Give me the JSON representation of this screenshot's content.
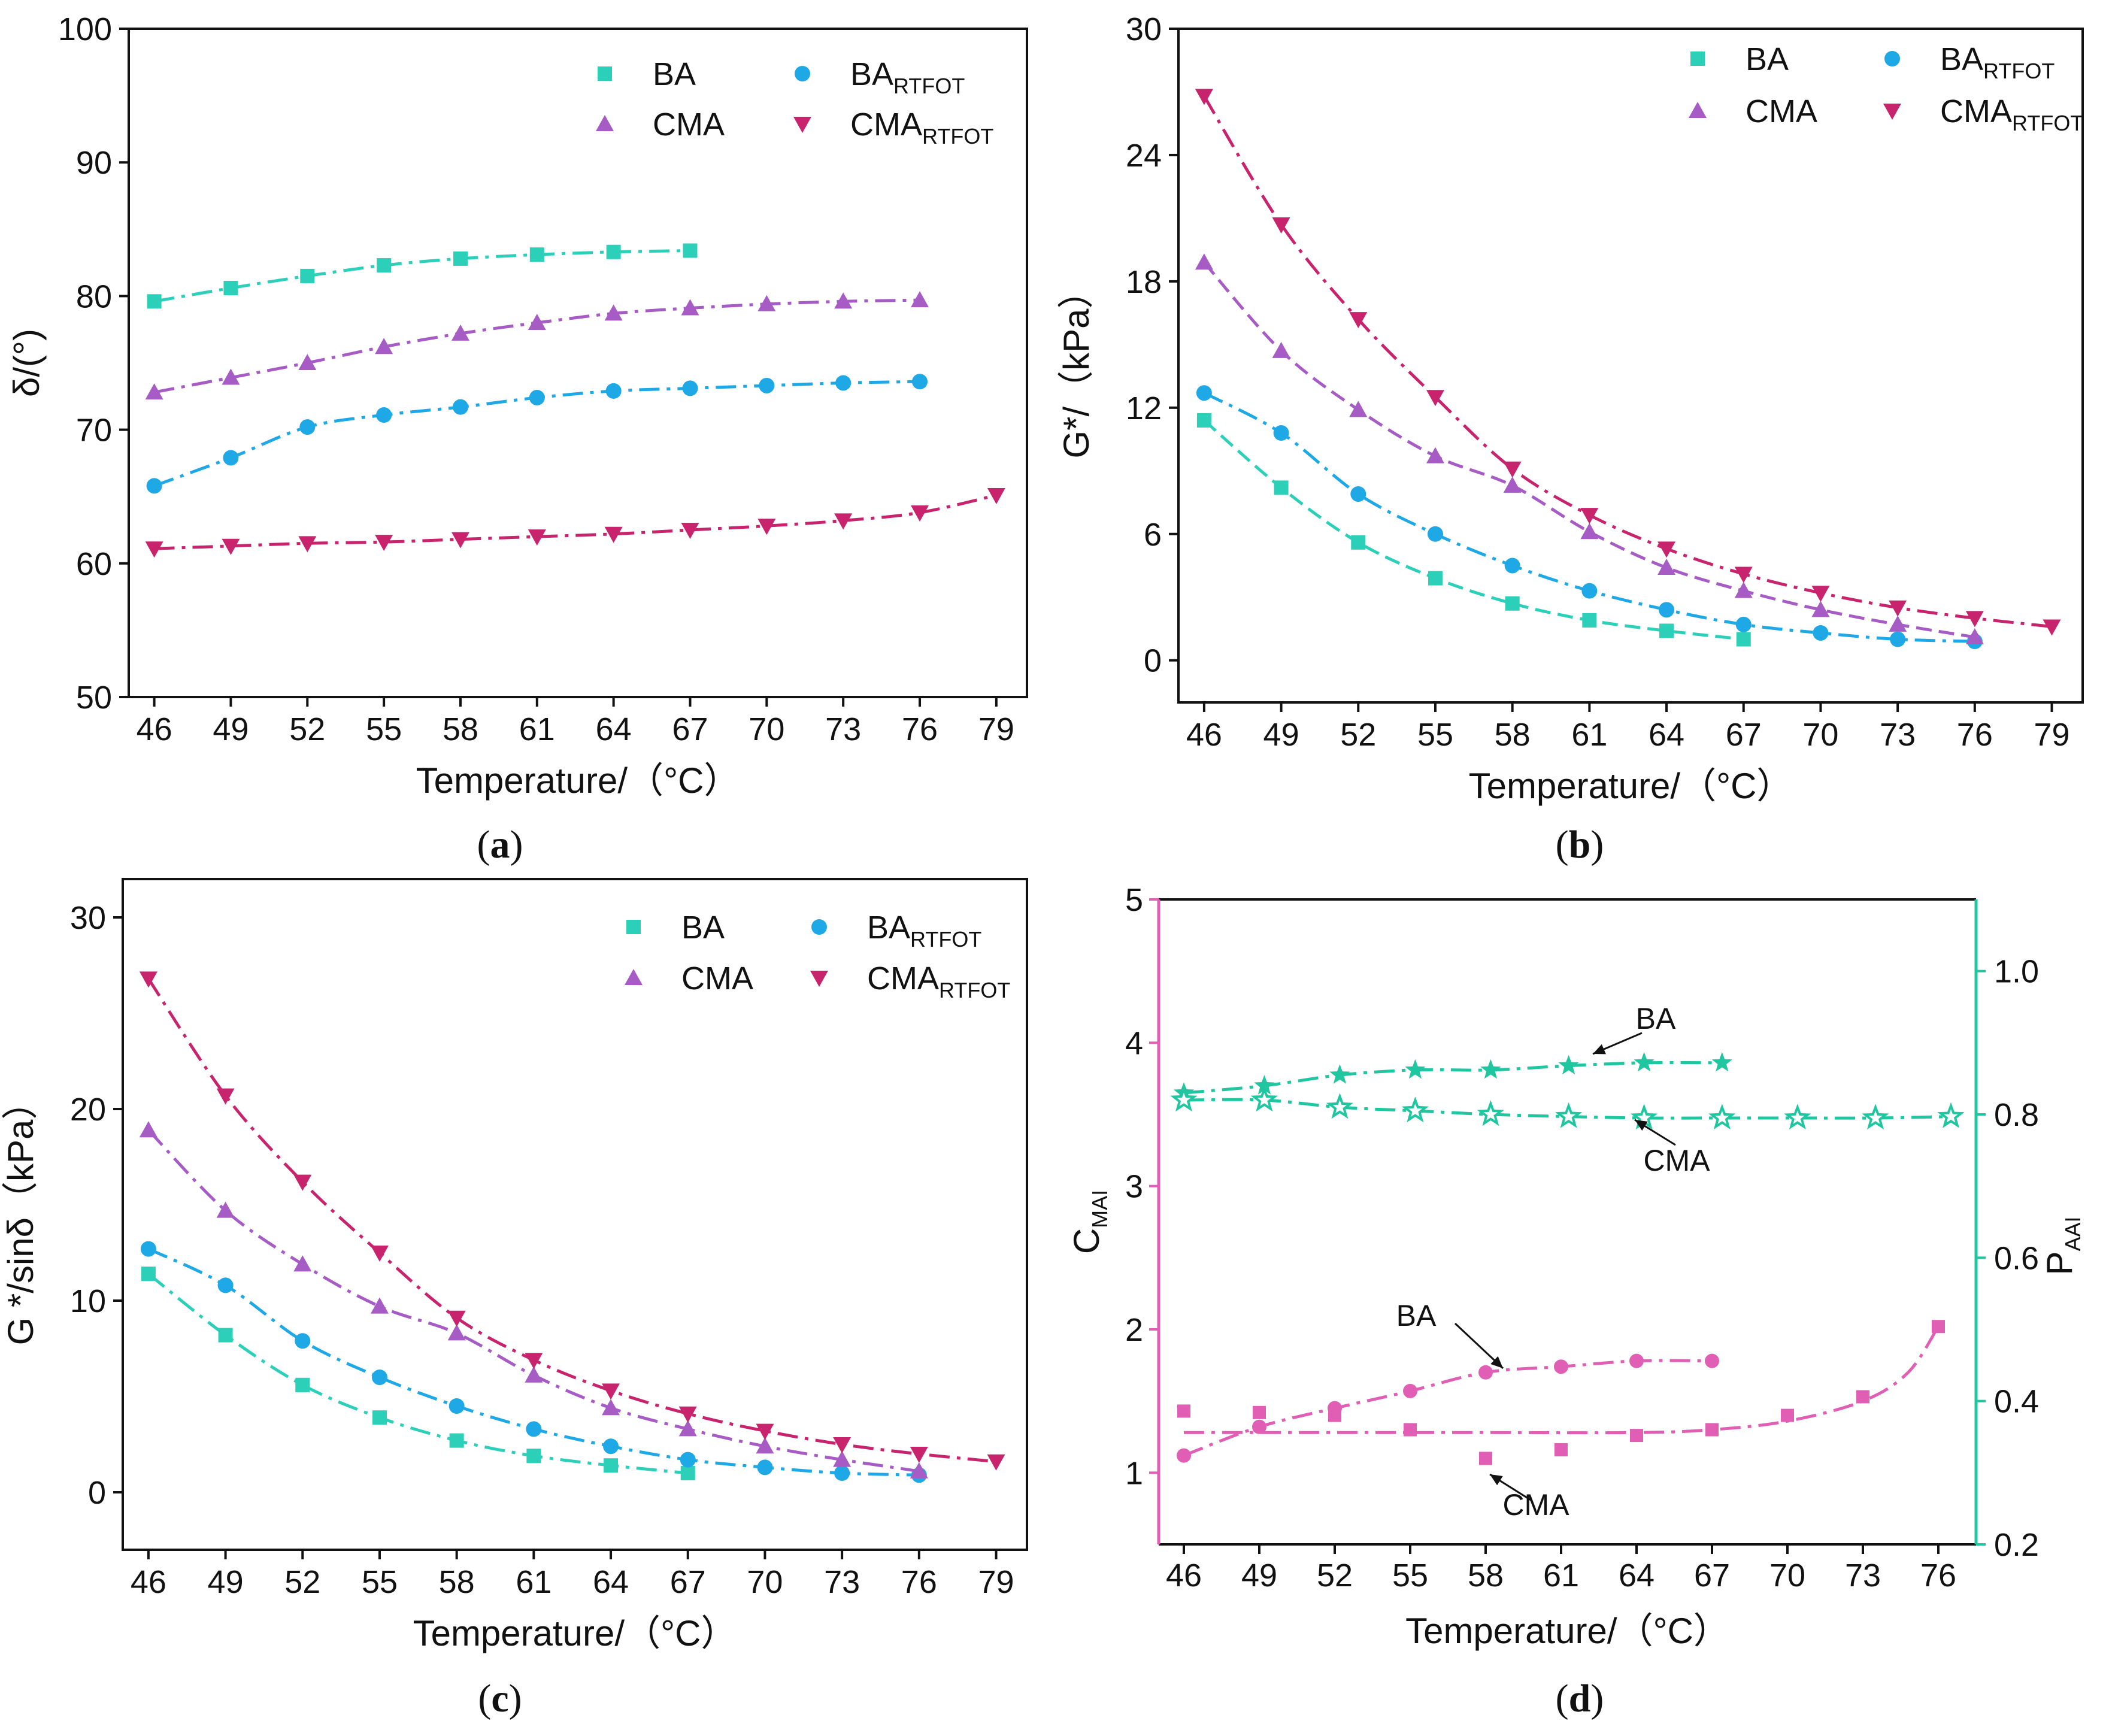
{
  "colors": {
    "BA": "#2ccfb8",
    "BA_RTFOT": "#1ea8e6",
    "CMA": "#a65cc4",
    "CMA_RTFOT": "#c8246e",
    "d_pink": "#e05fb5",
    "d_green": "#1fc69f",
    "axis": "#111111"
  },
  "chart_data": [
    {
      "id": "a",
      "type": "line",
      "caption_letter": "a",
      "xlabel": "Temperature/（°C）",
      "ylabel": "δ/(°)",
      "x_ticks": [
        "46",
        "49",
        "52",
        "55",
        "58",
        "61",
        "64",
        "67",
        "70",
        "73",
        "76",
        "79"
      ],
      "y_ticks": [
        "50",
        "60",
        "70",
        "80",
        "90",
        "100"
      ],
      "xlim": [
        45,
        80.2
      ],
      "ylim": [
        50,
        100
      ],
      "legend": {
        "placement": "top-right",
        "entries": [
          {
            "base": "BA",
            "sub": "",
            "series": "BA"
          },
          {
            "base": "BA",
            "sub": "RTFOT",
            "series": "BA_RTFOT"
          },
          {
            "base": "CMA",
            "sub": "",
            "series": "CMA"
          },
          {
            "base": "CMA",
            "sub": "RTFOT",
            "series": "CMA_RTFOT"
          }
        ]
      },
      "series": [
        {
          "name": "BA",
          "marker": "square",
          "x": [
            46,
            49,
            52,
            55,
            58,
            61,
            64,
            67
          ],
          "values": [
            79.6,
            80.6,
            81.5,
            82.3,
            82.8,
            83.1,
            83.3,
            83.4
          ]
        },
        {
          "name": "CMA",
          "marker": "triangle-up",
          "x": [
            46,
            49,
            52,
            55,
            58,
            61,
            64,
            67,
            70,
            73,
            76
          ],
          "values": [
            72.8,
            73.9,
            75.0,
            76.2,
            77.2,
            78.0,
            78.7,
            79.1,
            79.4,
            79.6,
            79.7
          ]
        },
        {
          "name": "BA_RTFOT",
          "marker": "circle",
          "x": [
            46,
            49,
            52,
            55,
            58,
            61,
            64,
            67,
            70,
            73,
            76
          ],
          "values": [
            65.8,
            67.9,
            70.2,
            71.1,
            71.7,
            72.4,
            72.9,
            73.1,
            73.3,
            73.5,
            73.6
          ]
        },
        {
          "name": "CMA_RTFOT",
          "marker": "triangle-down",
          "x": [
            46,
            49,
            52,
            55,
            58,
            61,
            64,
            67,
            70,
            73,
            76,
            79
          ],
          "values": [
            61.1,
            61.3,
            61.5,
            61.6,
            61.8,
            62.0,
            62.2,
            62.5,
            62.8,
            63.2,
            63.8,
            65.1
          ]
        }
      ]
    },
    {
      "id": "b",
      "type": "line",
      "caption_letter": "b",
      "xlabel": "Temperature/（°C）",
      "ylabel": "G*/（kPa）",
      "x_ticks": [
        "46",
        "49",
        "52",
        "55",
        "58",
        "61",
        "64",
        "67",
        "70",
        "73",
        "76",
        "79"
      ],
      "y_ticks": [
        "0",
        "6",
        "12",
        "18",
        "24",
        "30"
      ],
      "xlim": [
        45,
        80.2
      ],
      "ylim": [
        -2,
        30
      ],
      "legend": {
        "placement": "top-right",
        "entries": [
          {
            "base": "BA",
            "sub": "",
            "series": "BA"
          },
          {
            "base": "BA",
            "sub": "RTFOT",
            "series": "BA_RTFOT"
          },
          {
            "base": "CMA",
            "sub": "",
            "series": "CMA"
          },
          {
            "base": "CMA",
            "sub": "RTFOT",
            "series": "CMA_RTFOT"
          }
        ]
      },
      "series": [
        {
          "name": "BA",
          "marker": "square",
          "x": [
            46,
            49,
            52,
            55,
            58,
            61,
            64,
            67
          ],
          "values": [
            11.4,
            8.2,
            5.6,
            3.9,
            2.7,
            1.9,
            1.4,
            1.0
          ]
        },
        {
          "name": "BA_RTFOT",
          "marker": "circle",
          "x": [
            46,
            49,
            52,
            55,
            58,
            61,
            64,
            67,
            70,
            73,
            76
          ],
          "values": [
            12.7,
            10.8,
            7.9,
            6.0,
            4.5,
            3.3,
            2.4,
            1.7,
            1.3,
            1.0,
            0.9
          ]
        },
        {
          "name": "CMA",
          "marker": "triangle-up",
          "x": [
            46,
            49,
            52,
            55,
            58,
            61,
            64,
            67,
            70,
            73,
            76
          ],
          "values": [
            18.9,
            14.7,
            11.9,
            9.7,
            8.3,
            6.1,
            4.4,
            3.3,
            2.4,
            1.7,
            1.1
          ]
        },
        {
          "name": "CMA_RTFOT",
          "marker": "triangle-down",
          "x": [
            46,
            49,
            52,
            55,
            58,
            61,
            64,
            67,
            70,
            73,
            76,
            79
          ],
          "values": [
            26.8,
            20.7,
            16.2,
            12.5,
            9.1,
            6.9,
            5.3,
            4.1,
            3.2,
            2.5,
            2.0,
            1.6
          ]
        }
      ]
    },
    {
      "id": "c",
      "type": "line",
      "caption_letter": "c",
      "xlabel": "Temperature/（°C）",
      "ylabel": "G */sinδ（kPa）",
      "x_ticks": [
        "46",
        "49",
        "52",
        "55",
        "58",
        "61",
        "64",
        "67",
        "70",
        "73",
        "76",
        "79"
      ],
      "y_ticks": [
        "0",
        "10",
        "20",
        "30"
      ],
      "xlim": [
        45,
        80.2
      ],
      "ylim": [
        -3,
        32
      ],
      "legend": {
        "placement": "top-right",
        "entries": [
          {
            "base": "BA",
            "sub": "",
            "series": "BA"
          },
          {
            "base": "BA",
            "sub": "RTFOT",
            "series": "BA_RTFOT"
          },
          {
            "base": "CMA",
            "sub": "",
            "series": "CMA"
          },
          {
            "base": "CMA",
            "sub": "RTFOT",
            "series": "CMA_RTFOT"
          }
        ]
      },
      "series": [
        {
          "name": "BA",
          "marker": "square",
          "x": [
            46,
            49,
            52,
            55,
            58,
            61,
            64,
            67
          ],
          "values": [
            11.4,
            8.2,
            5.6,
            3.9,
            2.7,
            1.9,
            1.4,
            1.0
          ]
        },
        {
          "name": "BA_RTFOT",
          "marker": "circle",
          "x": [
            46,
            49,
            52,
            55,
            58,
            61,
            64,
            67,
            70,
            73,
            76
          ],
          "values": [
            12.7,
            10.8,
            7.9,
            6.0,
            4.5,
            3.3,
            2.4,
            1.7,
            1.3,
            1.0,
            0.9
          ]
        },
        {
          "name": "CMA",
          "marker": "triangle-up",
          "x": [
            46,
            49,
            52,
            55,
            58,
            61,
            64,
            67,
            70,
            73,
            76
          ],
          "values": [
            18.9,
            14.7,
            11.9,
            9.7,
            8.3,
            6.1,
            4.4,
            3.3,
            2.4,
            1.7,
            1.1
          ]
        },
        {
          "name": "CMA_RTFOT",
          "marker": "triangle-down",
          "x": [
            46,
            49,
            52,
            55,
            58,
            61,
            64,
            67,
            70,
            73,
            76,
            79
          ],
          "values": [
            26.8,
            20.7,
            16.2,
            12.5,
            9.1,
            6.9,
            5.3,
            4.1,
            3.2,
            2.5,
            2.0,
            1.6
          ]
        }
      ]
    },
    {
      "id": "d",
      "type": "line",
      "caption_letter": "d",
      "xlabel": "Temperature/（°C）",
      "ylabel_left": {
        "base": "C",
        "sub": "MAI"
      },
      "ylabel_right": {
        "base": "P",
        "sub": "AAI"
      },
      "x_ticks": [
        "46",
        "49",
        "52",
        "55",
        "58",
        "61",
        "64",
        "67",
        "70",
        "73",
        "76"
      ],
      "y_ticks_left": [
        "1",
        "2",
        "3",
        "4",
        "5"
      ],
      "y_ticks_right": [
        "0.2",
        "0.4",
        "0.6",
        "0.8",
        "1.0"
      ],
      "xlim": [
        45,
        77.5
      ],
      "ylim_left": [
        0.5,
        5
      ],
      "ylim_right": [
        0.2,
        1.1
      ],
      "annotations": [
        {
          "text": "BA",
          "target": "P_AAI BA"
        },
        {
          "text": "CMA",
          "target": "P_AAI CMA"
        },
        {
          "text": "BA",
          "target": "C_MAI BA"
        },
        {
          "text": "CMA",
          "target": "C_MAI CMA"
        }
      ],
      "series": [
        {
          "name": "C_MAI BA",
          "axis": "left",
          "marker": "circle",
          "x": [
            46,
            49,
            52,
            55,
            58,
            61,
            64,
            67
          ],
          "values": [
            1.12,
            1.32,
            1.45,
            1.57,
            1.7,
            1.74,
            1.78,
            1.78
          ]
        },
        {
          "name": "C_MAI CMA",
          "axis": "left",
          "marker": "square",
          "x": [
            46,
            49,
            52,
            55,
            58,
            61,
            64,
            67,
            70,
            73,
            76
          ],
          "values": [
            1.43,
            1.42,
            1.4,
            1.3,
            1.1,
            1.16,
            1.26,
            1.3,
            1.4,
            1.53,
            2.02
          ]
        },
        {
          "name": "P_AAI BA",
          "axis": "right",
          "marker": "star",
          "x": [
            46,
            49.2,
            52.2,
            55.2,
            58.2,
            61.3,
            64.3,
            67.4
          ],
          "values": [
            0.83,
            0.84,
            0.855,
            0.862,
            0.862,
            0.868,
            0.872,
            0.872
          ]
        },
        {
          "name": "P_AAI CMA",
          "axis": "right",
          "marker": "star-open",
          "x": [
            46,
            49.2,
            52.2,
            55.2,
            58.2,
            61.3,
            64.3,
            67.4,
            70.4,
            73.5,
            76.5
          ],
          "values": [
            0.82,
            0.82,
            0.81,
            0.805,
            0.8,
            0.797,
            0.795,
            0.795,
            0.795,
            0.795,
            0.797
          ]
        }
      ]
    }
  ]
}
